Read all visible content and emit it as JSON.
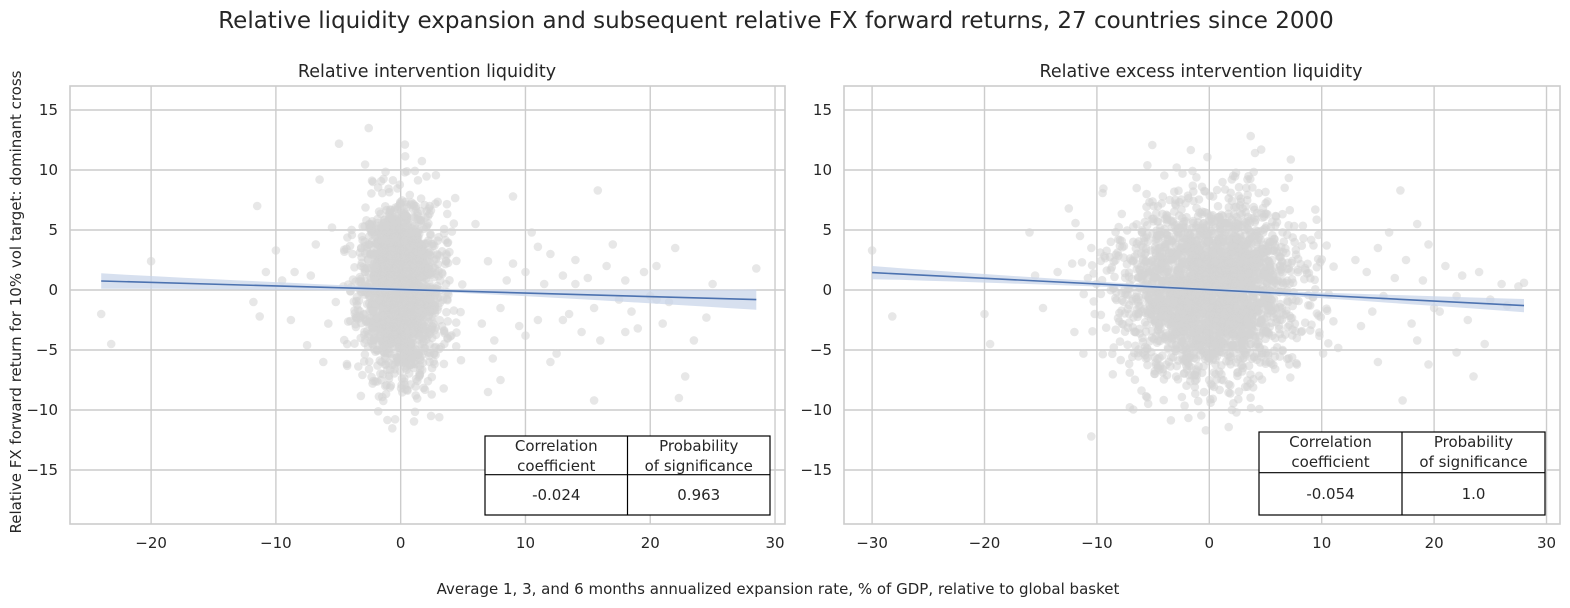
{
  "figure": {
    "title": "Relative liquidity expansion and subsequent relative FX forward returns, 27 countries since 2000",
    "xlabel": "Average 1, 3, and 6 months annualized expansion rate, % of GDP, relative to global basket",
    "ylabel": "Relative FX forward return for 10% vol target: dominant cross",
    "colors": {
      "points": "#d3d3d3",
      "regression_line": "#4c72b0",
      "confidence_band": "#c9d5ea",
      "grid": "#cccccc",
      "axes": "#cccccc"
    }
  },
  "chart_data": [
    {
      "type": "scatter",
      "title": "Relative intervention liquidity",
      "xlim": [
        -26.5,
        30.8
      ],
      "ylim": [
        -19.5,
        17
      ],
      "xticks": [
        -20,
        -10,
        0,
        10,
        20,
        30
      ],
      "yticks": [
        -15,
        -10,
        -5,
        0,
        5,
        10,
        15
      ],
      "xtick_labels": [
        "−20",
        "−10",
        "0",
        "10",
        "20",
        "30"
      ],
      "ytick_labels": [
        "−15",
        "−10",
        "−5",
        "0",
        "5",
        "10",
        "15"
      ],
      "grid": true,
      "cloud": {
        "n": 1900,
        "x_center": 0,
        "x_sd": 1.6,
        "y_center": 0,
        "y_sd": 3.6,
        "seed": 11
      },
      "outliers": [
        [
          -24,
          -2
        ],
        [
          -23.2,
          -4.5
        ],
        [
          -20,
          2.4
        ],
        [
          -11.5,
          7
        ],
        [
          -11.3,
          -2.2
        ],
        [
          -11.8,
          -1
        ],
        [
          -10.8,
          1.5
        ],
        [
          -10,
          3.3
        ],
        [
          -9.5,
          0.8
        ],
        [
          -8.8,
          -2.5
        ],
        [
          -8.5,
          1.5
        ],
        [
          -7.5,
          -4.6
        ],
        [
          -7.2,
          1.2
        ],
        [
          -6.5,
          9.2
        ],
        [
          -6.8,
          3.8
        ],
        [
          -6.2,
          -6
        ],
        [
          -5.8,
          -2.8
        ],
        [
          -5.5,
          5.2
        ],
        [
          -5.2,
          -1
        ],
        [
          6,
          5.5
        ],
        [
          6.5,
          -2.8
        ],
        [
          7,
          2.4
        ],
        [
          7.5,
          -4.2
        ],
        [
          8,
          -1.5
        ],
        [
          8.5,
          0.8
        ],
        [
          9,
          2.2
        ],
        [
          9.5,
          -3
        ],
        [
          10,
          1.5
        ],
        [
          10.5,
          4.8
        ],
        [
          11,
          -2.5
        ],
        [
          11.5,
          0.5
        ],
        [
          12,
          3
        ],
        [
          12.5,
          -5.3
        ],
        [
          13,
          1.2
        ],
        [
          13.5,
          -2
        ],
        [
          14,
          0.5
        ],
        [
          14.5,
          -3.5
        ],
        [
          15,
          1
        ],
        [
          15.5,
          -1.5
        ],
        [
          15.8,
          8.3
        ],
        [
          16,
          -4.2
        ],
        [
          16.5,
          2
        ],
        [
          17,
          3.8
        ],
        [
          17.5,
          -0.8
        ],
        [
          18,
          0.8
        ],
        [
          18.5,
          -1.8
        ],
        [
          19,
          -3.2
        ],
        [
          19.5,
          1.5
        ],
        [
          20,
          -0.5
        ],
        [
          20.5,
          2
        ],
        [
          21,
          -2.8
        ],
        [
          21.5,
          -1
        ],
        [
          22,
          3.5
        ],
        [
          22.3,
          -9
        ],
        [
          22.8,
          -7.2
        ],
        [
          23.5,
          -4.2
        ],
        [
          24.5,
          -2.3
        ],
        [
          25,
          0.5
        ],
        [
          28.5,
          1.8
        ],
        [
          15.5,
          -9.2
        ],
        [
          8,
          -7.5
        ],
        [
          9,
          7.8
        ],
        [
          12,
          -6
        ],
        [
          7,
          -8.5
        ],
        [
          10,
          -3.8
        ],
        [
          11,
          3.6
        ],
        [
          13,
          -2.5
        ],
        [
          18,
          -3.5
        ],
        [
          20.5,
          -0.8
        ],
        [
          14,
          2.5
        ]
      ],
      "regression": {
        "x_start": -24,
        "x_end": 28.5,
        "y_start": 0.75,
        "y_end": -0.8,
        "band_half_start": 0.65,
        "band_half_center": 0.1,
        "band_half_end": 0.85
      },
      "table": {
        "headers": [
          [
            "Correlation",
            "coefficient"
          ],
          [
            "Probability",
            "of significance"
          ]
        ],
        "values": [
          "-0.024",
          "0.963"
        ]
      }
    },
    {
      "type": "scatter",
      "title": "Relative excess intervention liquidity",
      "xlim": [
        -32.5,
        31.2
      ],
      "ylim": [
        -19.5,
        17
      ],
      "xticks": [
        -30,
        -20,
        -10,
        0,
        10,
        20,
        30
      ],
      "yticks": [
        -15,
        -10,
        -5,
        0,
        5,
        10,
        15
      ],
      "xtick_labels": [
        "−30",
        "−20",
        "−10",
        "0",
        "10",
        "20",
        "30"
      ],
      "ytick_labels": [
        "−15",
        "−10",
        "−5",
        "0",
        "5",
        "10",
        "15"
      ],
      "grid": true,
      "cloud": {
        "n": 2600,
        "x_center": 0,
        "x_sd": 3.8,
        "y_center": 0,
        "y_sd": 3.6,
        "seed": 23
      },
      "outliers": [
        [
          -30,
          3.3
        ],
        [
          -28.2,
          -2.2
        ],
        [
          -20,
          -2
        ],
        [
          -19.5,
          -4.5
        ],
        [
          -16,
          4.8
        ],
        [
          -15.5,
          1.2
        ],
        [
          -14.8,
          -1.5
        ],
        [
          -13.5,
          1.5
        ],
        [
          -12.5,
          6.8
        ],
        [
          -12.2,
          2.2
        ],
        [
          -12,
          -3.5
        ],
        [
          -11.5,
          4.5
        ],
        [
          -10.5,
          -12.2
        ],
        [
          -11.2,
          -5.3
        ],
        [
          -10.8,
          1
        ],
        [
          -10.5,
          3.5
        ],
        [
          -10.2,
          -2
        ],
        [
          13,
          2.5
        ],
        [
          13.5,
          -3
        ],
        [
          14,
          1.5
        ],
        [
          14.5,
          -1.8
        ],
        [
          15,
          3.5
        ],
        [
          15.5,
          -0.5
        ],
        [
          16,
          4.8
        ],
        [
          16.5,
          1
        ],
        [
          17,
          8.3
        ],
        [
          17.2,
          -9.2
        ],
        [
          17.5,
          2.5
        ],
        [
          18,
          -2.8
        ],
        [
          18.5,
          -4.2
        ],
        [
          19,
          0.8
        ],
        [
          19.5,
          3.8
        ],
        [
          20,
          -1.5
        ],
        [
          21,
          2
        ],
        [
          22,
          -0.5
        ],
        [
          22.5,
          1.2
        ],
        [
          23,
          -2.5
        ],
        [
          23.5,
          -7.2
        ],
        [
          24,
          1.5
        ],
        [
          24.5,
          -4.5
        ],
        [
          25,
          -0.8
        ],
        [
          26,
          0.5
        ],
        [
          27.5,
          0.3
        ],
        [
          28,
          0.6
        ],
        [
          26.5,
          -1.3
        ],
        [
          20.5,
          -1.8
        ],
        [
          19.5,
          -6.2
        ],
        [
          22,
          -5.2
        ],
        [
          15,
          -6
        ],
        [
          18.5,
          5.5
        ]
      ],
      "regression": {
        "x_start": -30,
        "x_end": 28,
        "y_start": 1.45,
        "y_end": -1.3,
        "band_half_start": 0.55,
        "band_half_center": 0.1,
        "band_half_end": 0.55
      },
      "table": {
        "headers": [
          [
            "Correlation",
            "coefficient"
          ],
          [
            "Probability",
            "of significance"
          ]
        ],
        "values": [
          "-0.054",
          "1.0"
        ]
      }
    }
  ]
}
